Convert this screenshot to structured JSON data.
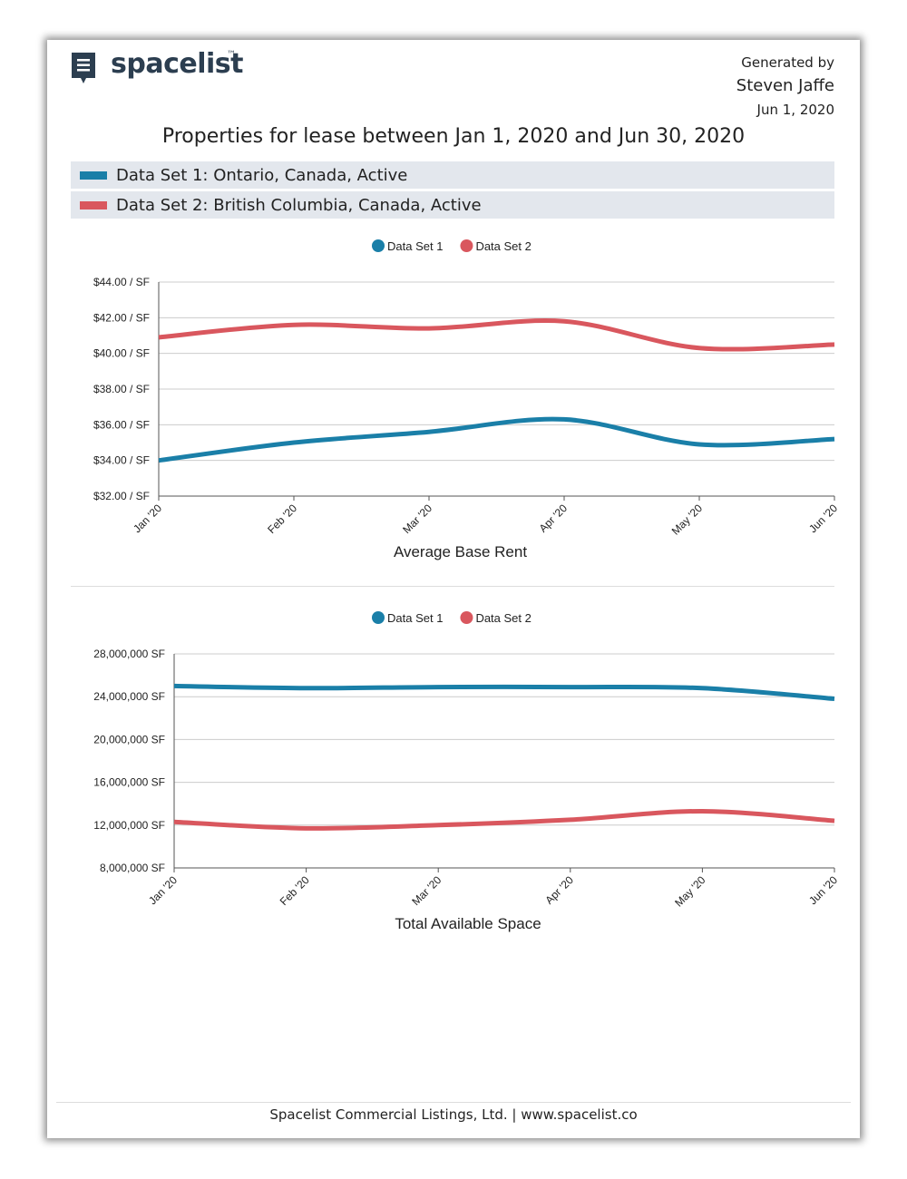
{
  "header": {
    "logo": "spacelist",
    "trademark": "™",
    "generated_by": "Generated by",
    "author": "Steven Jaffe",
    "date": "Jun 1, 2020"
  },
  "title": "Properties for lease between Jan 1, 2020 and Jun 30, 2020",
  "datasets": [
    {
      "label": "Data Set 1: Ontario, Canada, Active",
      "color": "#1a7fa8"
    },
    {
      "label": "Data Set 2: British Columbia, Canada, Active",
      "color": "#d9575e"
    }
  ],
  "chart_data": [
    {
      "type": "line",
      "xlabel": "Average Base Rent",
      "categories": [
        "Jan '20",
        "Feb '20",
        "Mar '20",
        "Apr '20",
        "May '20",
        "Jun '20"
      ],
      "series": [
        {
          "name": "Data Set 1",
          "color": "#1a7fa8",
          "values": [
            34.0,
            35.0,
            35.6,
            36.3,
            34.9,
            35.2
          ]
        },
        {
          "name": "Data Set 2",
          "color": "#d9575e",
          "values": [
            40.9,
            41.6,
            41.4,
            41.8,
            40.3,
            40.5
          ]
        }
      ],
      "ylim": [
        32,
        44
      ],
      "yticks": [
        {
          "value": 32,
          "label": "$32.00 / SF"
        },
        {
          "value": 34,
          "label": "$34.00 / SF"
        },
        {
          "value": 36,
          "label": "$36.00 / SF"
        },
        {
          "value": 38,
          "label": "$38.00 / SF"
        },
        {
          "value": 40,
          "label": "$40.00 / SF"
        },
        {
          "value": 42,
          "label": "$42.00 / SF"
        },
        {
          "value": 44,
          "label": "$44.00 / SF"
        }
      ],
      "grid": true
    },
    {
      "type": "line",
      "xlabel": "Total Available Space",
      "categories": [
        "Jan '20",
        "Feb '20",
        "Mar '20",
        "Apr '20",
        "May '20",
        "Jun '20"
      ],
      "series": [
        {
          "name": "Data Set 1",
          "color": "#1a7fa8",
          "values": [
            25000000,
            24800000,
            24900000,
            24900000,
            24800000,
            23800000
          ]
        },
        {
          "name": "Data Set 2",
          "color": "#d9575e",
          "values": [
            12300000,
            11700000,
            12000000,
            12500000,
            13300000,
            12400000
          ]
        }
      ],
      "ylim": [
        8000000,
        28000000
      ],
      "yticks": [
        {
          "value": 8000000,
          "label": "8,000,000 SF"
        },
        {
          "value": 12000000,
          "label": "12,000,000 SF"
        },
        {
          "value": 16000000,
          "label": "16,000,000 SF"
        },
        {
          "value": 20000000,
          "label": "20,000,000 SF"
        },
        {
          "value": 24000000,
          "label": "24,000,000 SF"
        },
        {
          "value": 28000000,
          "label": "28,000,000 SF"
        }
      ],
      "grid": true
    }
  ],
  "footer": "Spacelist Commercial Listings, Ltd. | www.spacelist.co"
}
